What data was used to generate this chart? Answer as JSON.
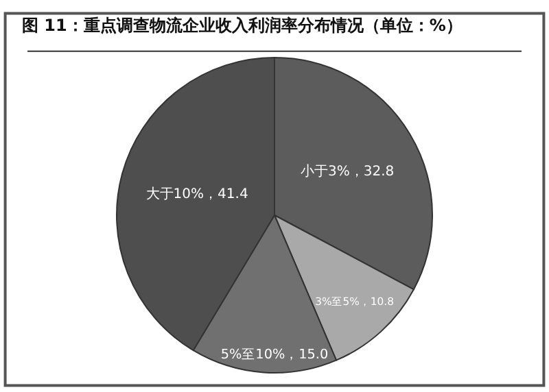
{
  "chart_data": {
    "type": "pie",
    "title": "图 11：重点调查物流企业收入利润率分布情况（单位：%）",
    "categories": [
      "小于3%",
      "3%至5%",
      "5%至10%",
      "大于10%"
    ],
    "values": [
      32.8,
      10.8,
      15.0,
      41.4
    ],
    "value_labels": [
      "32.8",
      "10.8",
      "15.0",
      "41.4"
    ],
    "colors": [
      "#5c5c5c",
      "#a9a9a9",
      "#707070",
      "#4e4e4e"
    ],
    "legend": false
  }
}
